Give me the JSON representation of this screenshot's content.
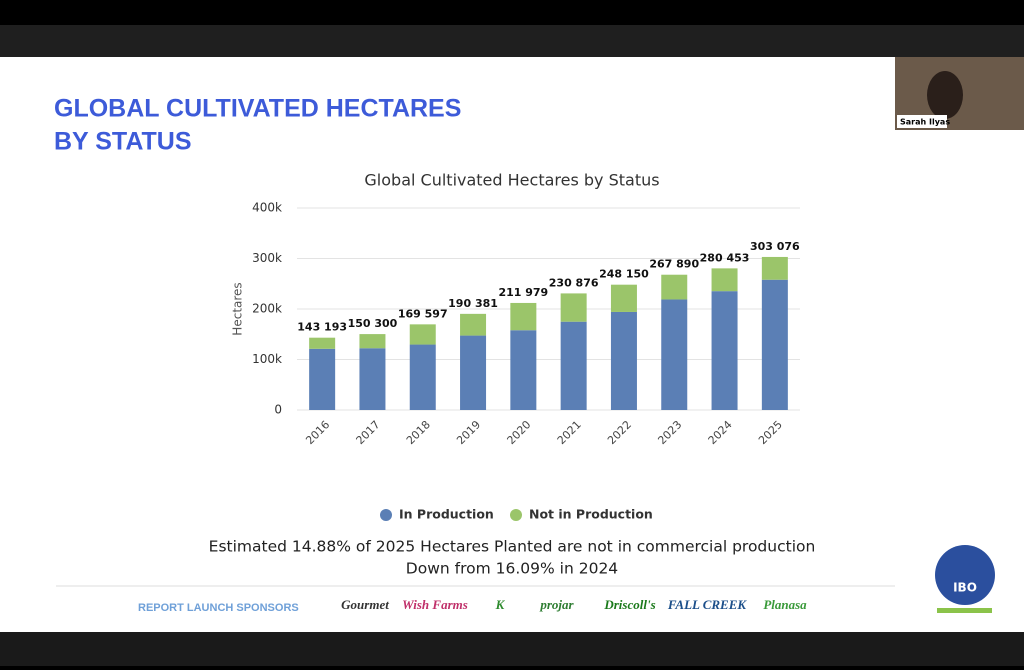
{
  "slide": {
    "title_lines": [
      "GLOBAL CULTIVATED HECTARES",
      "BY STATUS"
    ],
    "notes": [
      "Estimated 14.88% of 2025 Hectares Planted are not in commercial production",
      "Down from 16.09% in 2024"
    ],
    "sponsors_heading": "REPORT LAUNCH SPONSORS",
    "sponsors": [
      "Gourmet",
      "Wish Farms",
      "K",
      "projar",
      "Driscoll's",
      "FALL CREEK",
      "Planasa"
    ],
    "logo": "IBO",
    "participant": "Sarah Ilyas"
  },
  "chart_data": {
    "type": "stacked_bar",
    "title": "Global Cultivated Hectares by Status",
    "y_label": "Hectares",
    "categories": [
      "2016",
      "2017",
      "2018",
      "2019",
      "2020",
      "2021",
      "2022",
      "2023",
      "2024",
      "2025"
    ],
    "series": [
      {
        "name": "In Production",
        "color": "#5b7fb5",
        "values": [
          121193,
          122300,
          129597,
          147381,
          157979,
          174876,
          194150,
          218890,
          235328,
          257978
        ]
      },
      {
        "name": "Not in Production",
        "color": "#9bc56a",
        "values": [
          22000,
          28000,
          40000,
          43000,
          54000,
          56000,
          54000,
          49000,
          45125,
          45098
        ]
      }
    ],
    "totals": [
      143193,
      150300,
      169597,
      190381,
      211979,
      230876,
      248150,
      267890,
      280453,
      303076
    ],
    "total_labels": [
      "143 193",
      "150 300",
      "169 597",
      "190 381",
      "211 979",
      "230 876",
      "248 150",
      "267 890",
      "280 453",
      "303 076"
    ],
    "ylim": [
      0,
      400000
    ],
    "yticks": [
      0,
      {
        "value": 100000,
        "label": "100k"
      },
      {
        "value": 200000,
        "label": "200k"
      },
      {
        "value": 300000,
        "label": "300k"
      },
      {
        "value": 400000,
        "label": "400k"
      }
    ],
    "grid": true,
    "legend": "bottom"
  }
}
